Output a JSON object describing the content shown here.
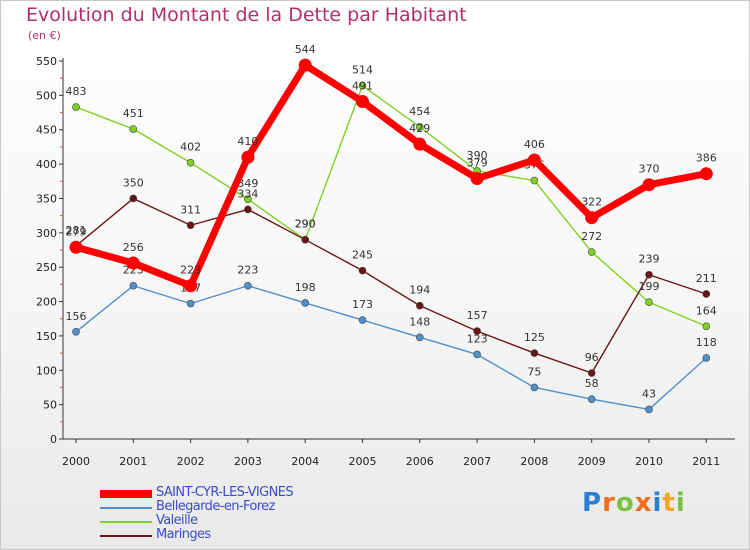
{
  "chart_data": {
    "type": "line",
    "title": "Evolution du Montant de la Dette par Habitant",
    "subtitle": "(en €)",
    "categories": [
      "2000",
      "2001",
      "2002",
      "2003",
      "2004",
      "2005",
      "2006",
      "2007",
      "2008",
      "2009",
      "2010",
      "2011"
    ],
    "ylim": [
      0,
      550
    ],
    "yticks": [
      0,
      50,
      100,
      150,
      200,
      250,
      300,
      350,
      400,
      450,
      500,
      550
    ],
    "grid": false,
    "legend_position": "bottom-left",
    "series": [
      {
        "name": "Bellegarde-en-Forez",
        "color": "#4f90c8",
        "values": [
          156,
          223,
          197,
          223,
          198,
          173,
          148,
          123,
          75,
          58,
          43,
          118
        ]
      },
      {
        "name": "Valeille",
        "color": "#7ed321",
        "values": [
          483,
          451,
          402,
          349,
          290,
          514,
          454,
          390,
          376,
          272,
          199,
          164
        ]
      },
      {
        "name": "Maringes",
        "color": "#6b1416",
        "values": [
          281,
          350,
          311,
          334,
          290,
          245,
          194,
          157,
          125,
          96,
          239,
          211
        ]
      },
      {
        "name": "SAINT-CYR-LES-VIGNES",
        "color": "#ff0000",
        "values": [
          279,
          256,
          223,
          410,
          544,
          491,
          429,
          379,
          406,
          322,
          370,
          386
        ]
      }
    ]
  },
  "legend": [
    {
      "label": "SAINT-CYR-LES-VIGNES",
      "color": "#ff0000"
    },
    {
      "label": "Bellegarde-en-Forez",
      "color": "#4f90c8"
    },
    {
      "label": "Valeille",
      "color": "#7ed321"
    },
    {
      "label": "Maringes",
      "color": "#6b1416"
    }
  ],
  "logo": {
    "letters": [
      {
        "ch": "P",
        "color": "#2a7fd1"
      },
      {
        "ch": "r",
        "color": "#f26a1b"
      },
      {
        "ch": "o",
        "color": "#7cc242"
      },
      {
        "ch": "x",
        "color": "#f26a1b"
      },
      {
        "ch": "i",
        "color": "#2a7fd1"
      },
      {
        "ch": "t",
        "color": "#f5a623"
      },
      {
        "ch": "i",
        "color": "#7cc242"
      }
    ]
  }
}
